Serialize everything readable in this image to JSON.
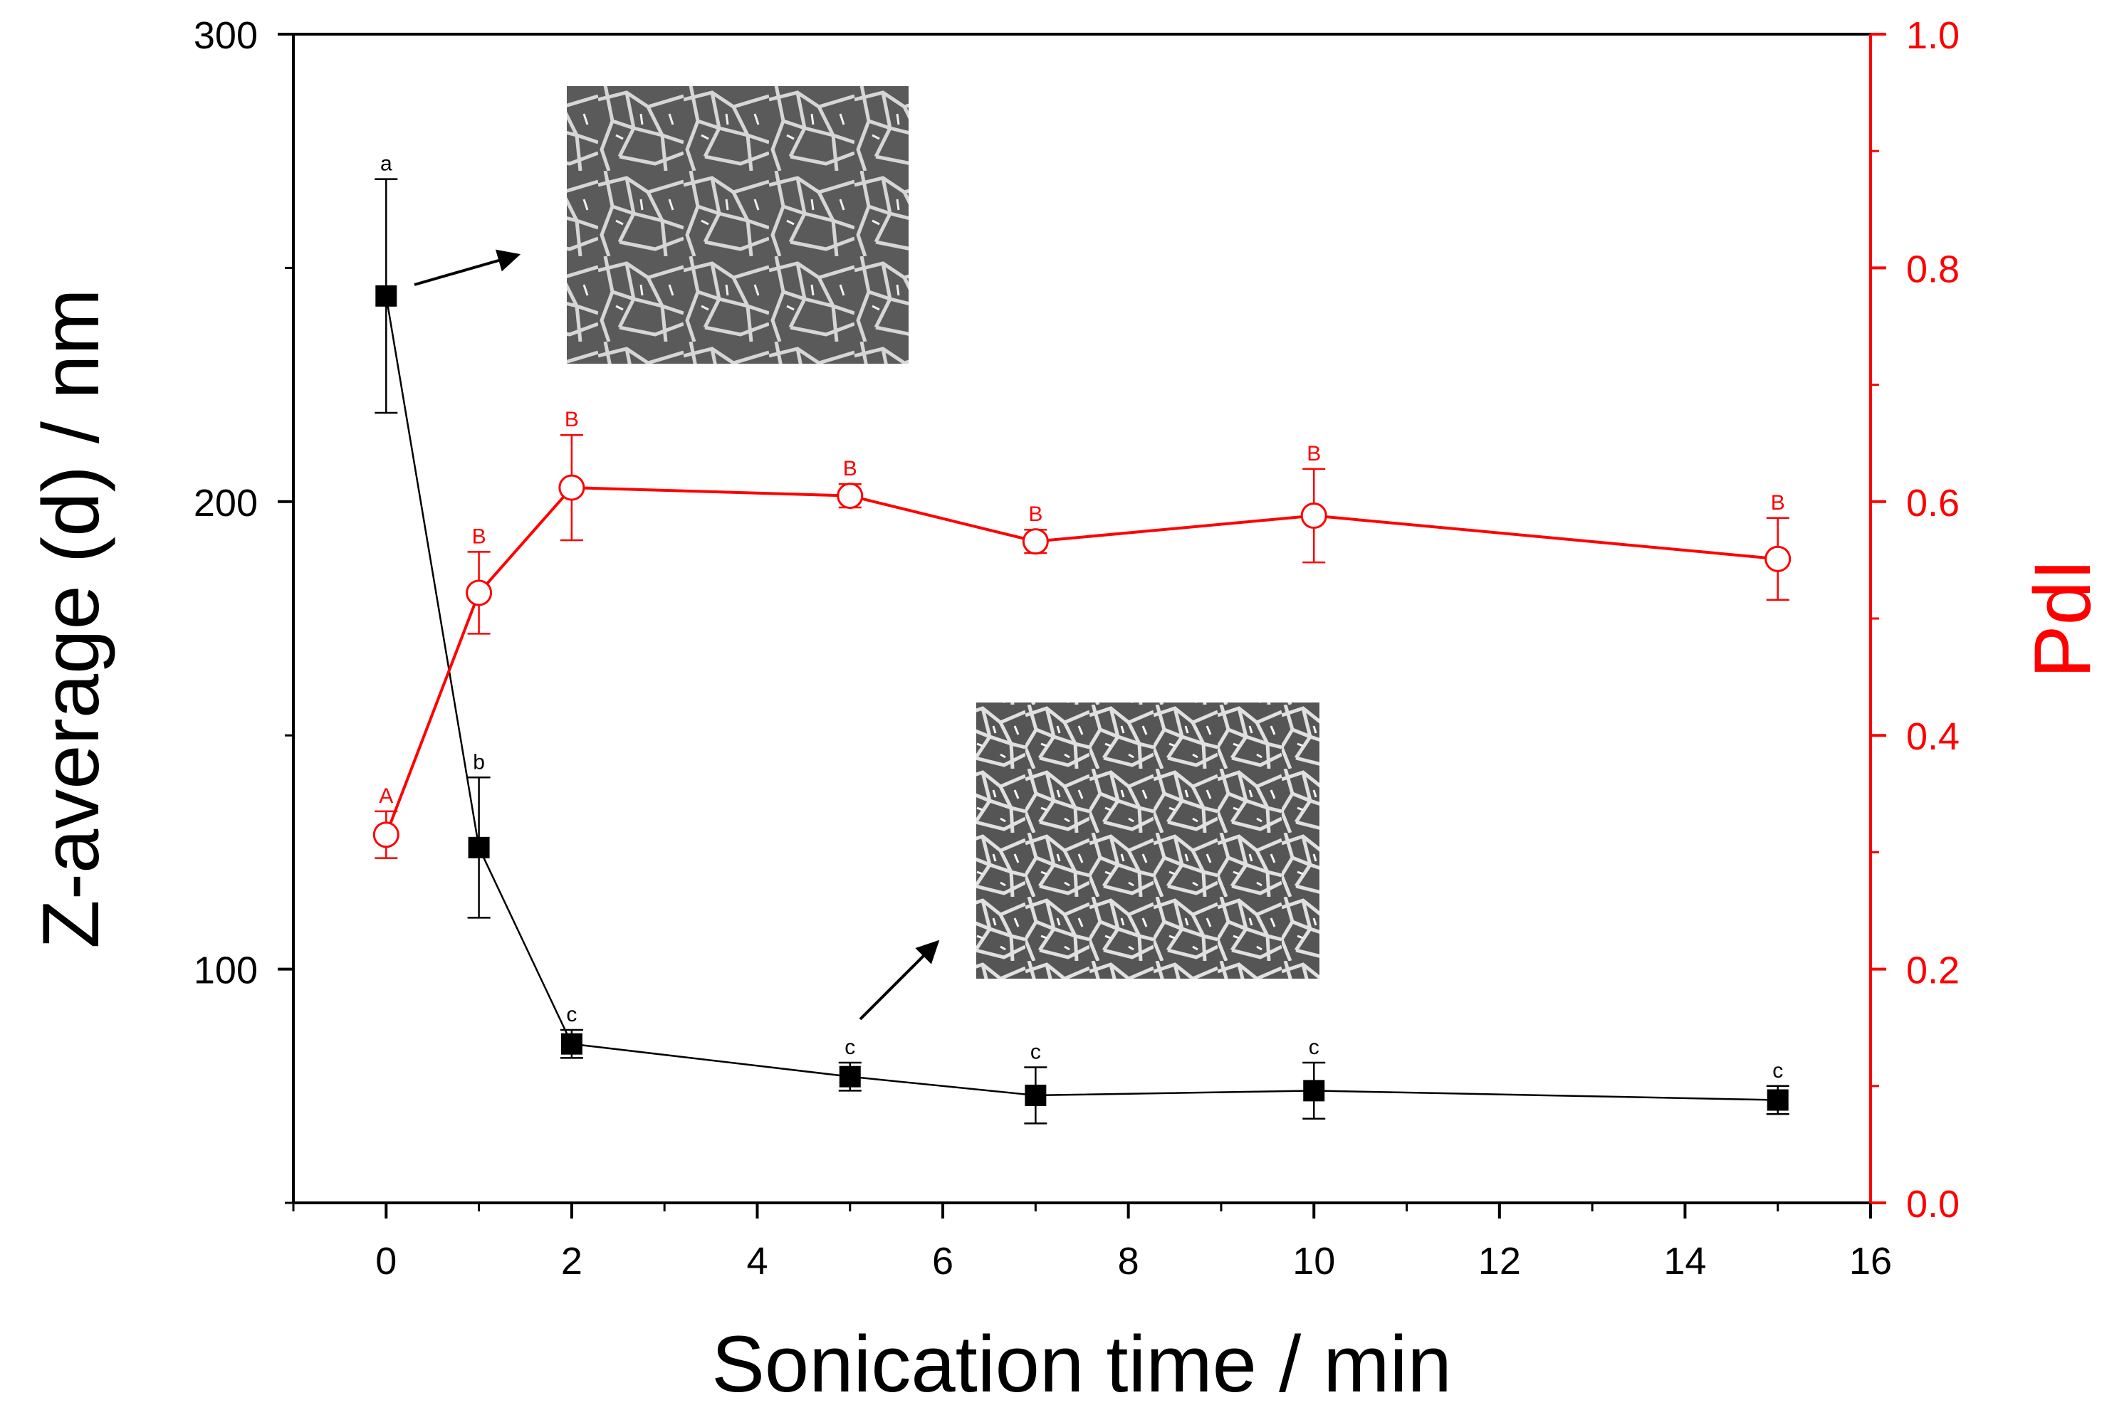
{
  "chart_data": {
    "type": "line",
    "xlabel": "Sonication time / min",
    "ylabel_left": "Z-average (d) / nm",
    "ylabel_right": "PdI",
    "xlim": [
      -1,
      16
    ],
    "ylim_left": [
      50,
      300
    ],
    "ylim_right": [
      0.0,
      1.0
    ],
    "x_ticks": [
      "0",
      "2",
      "4",
      "6",
      "8",
      "10",
      "12",
      "14",
      "16"
    ],
    "y_left_ticks": [
      "100",
      "200",
      "300"
    ],
    "y_right_ticks": [
      "0.0",
      "0.2",
      "0.4",
      "0.6",
      "0.8",
      "1.0"
    ],
    "colors": {
      "zavg": "#000000",
      "pdi": "#ff0000"
    },
    "series": [
      {
        "key": "zavg",
        "axis": "left",
        "marker": "filled-square",
        "x": [
          0,
          1,
          2,
          5,
          7,
          10,
          15
        ],
        "y": [
          244,
          126,
          84,
          77,
          73,
          74,
          72
        ],
        "err": [
          25,
          15,
          3,
          3,
          6,
          6,
          3
        ],
        "letters": [
          "a",
          "b",
          "c",
          "c",
          "c",
          "c",
          "c"
        ]
      },
      {
        "key": "pdi",
        "axis": "right",
        "marker": "open-circle",
        "x": [
          0,
          1,
          2,
          5,
          7,
          10,
          15
        ],
        "y": [
          0.315,
          0.522,
          0.612,
          0.605,
          0.566,
          0.588,
          0.551
        ],
        "err": [
          0.02,
          0.035,
          0.045,
          0.01,
          0.01,
          0.04,
          0.035
        ],
        "letters": [
          "A",
          "B",
          "B",
          "B",
          "B",
          "B",
          "B"
        ]
      }
    ],
    "insets": [
      {
        "name": "sem-image-0min",
        "points_to_x": 0
      },
      {
        "name": "sem-image-5min",
        "points_to_x": 5
      }
    ]
  }
}
